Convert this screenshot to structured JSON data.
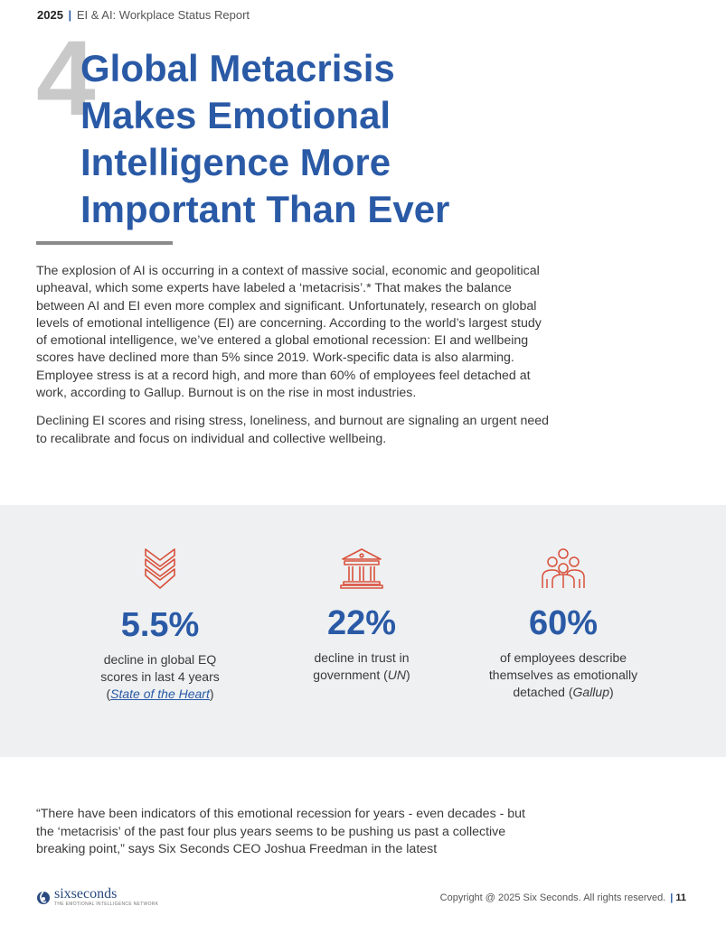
{
  "header": {
    "year": "2025",
    "separator": "|",
    "report_title": "EI & AI: Workplace Status Report"
  },
  "chapter": {
    "number": "4",
    "title_lines": [
      "Global Metacrisis",
      "Makes Emotional",
      "Intelligence More",
      "Important Than Ever"
    ]
  },
  "body": {
    "paragraph1": "The explosion of AI is occurring in a context of massive social, economic and geopolitical upheaval, which some experts have labeled a ‘metacrisis’.* That makes the balance between AI and EI even more complex and significant. Unfortunately, research on global levels of emotional intelligence (EI) are concerning. According to the world’s largest study of emotional intelligence, we’ve entered a global emotional recession: EI and wellbeing scores have declined more than 5% since 2019. Work-specific data is also alarming. Employee stress is at a record high, and more than 60% of employees feel detached at work, according to Gallup. Burnout is on the rise in most industries.",
    "paragraph2": "Declining EI scores and rising stress, loneliness, and burnout are signaling an urgent need to recalibrate and focus on individual and collective wellbeing."
  },
  "stats": [
    {
      "icon": "chevron-down-icon",
      "value": "5.5%",
      "desc_lines": [
        "decline in global EQ",
        "scores in last 4 years"
      ],
      "source": "State of the Heart"
    },
    {
      "icon": "bank-building-icon",
      "value": "22%",
      "desc_lines": [
        "decline in trust in",
        "government"
      ],
      "source": "UN"
    },
    {
      "icon": "people-group-icon",
      "value": "60%",
      "desc_lines": [
        "of employees describe",
        "themselves as emotionally",
        "detached"
      ],
      "source": "Gallup"
    }
  ],
  "quote": {
    "text": "“There have been indicators of this emotional recession for years - even decades - but the ‘metacrisis’ of the past four plus years seems to be pushing us past a collective breaking point,” says Six Seconds CEO Joshua Freedman in the latest"
  },
  "footer": {
    "logo_name": "sixseconds",
    "logo_tagline": "THE EMOTIONAL INTELLIGENCE NETWORK",
    "copyright": "Copyright @ 2025 Six Seconds. All rights reserved.",
    "page_number": "11"
  },
  "colors": {
    "accent_blue": "#2a5aa6",
    "icon_red": "#d9503a",
    "big_number_gray": "#c9c9c9",
    "band_bg": "#eef0f2"
  }
}
